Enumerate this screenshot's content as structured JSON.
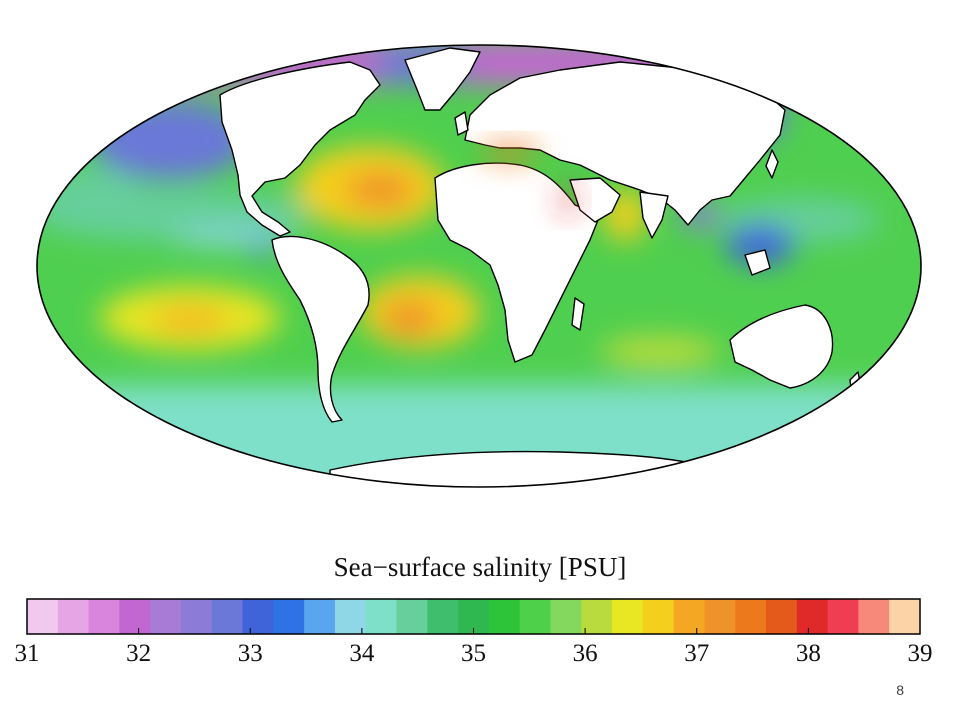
{
  "map": {
    "projection": "Mollweide",
    "colors": {
      "land": "#ffffff",
      "coast": "#000000",
      "ocean_base": "#4fcf4f"
    }
  },
  "legend": {
    "title": "Sea−surface salinity [PSU]",
    "tick_labels": [
      "31",
      "32",
      "33",
      "34",
      "35",
      "36",
      "37",
      "38",
      "39"
    ],
    "range": [
      31,
      39
    ],
    "colors": [
      "#f1c9ef",
      "#e6a6e6",
      "#d985dd",
      "#c266d1",
      "#a87cd6",
      "#8c7cd8",
      "#6b78d8",
      "#3f63d9",
      "#2f72e6",
      "#5aa6ee",
      "#8fd7e7",
      "#7ee0c8",
      "#66cf9c",
      "#3fbf6e",
      "#2fb84f",
      "#2ec43a",
      "#4fd04a",
      "#84d85e",
      "#b9db3e",
      "#e9e624",
      "#f4cf1c",
      "#f4a722",
      "#f0922a",
      "#ec7a1c",
      "#e35a1a",
      "#e02a2a",
      "#ef3d52",
      "#f6897a",
      "#fbd3a6"
    ]
  },
  "slide": {
    "number": "8"
  }
}
